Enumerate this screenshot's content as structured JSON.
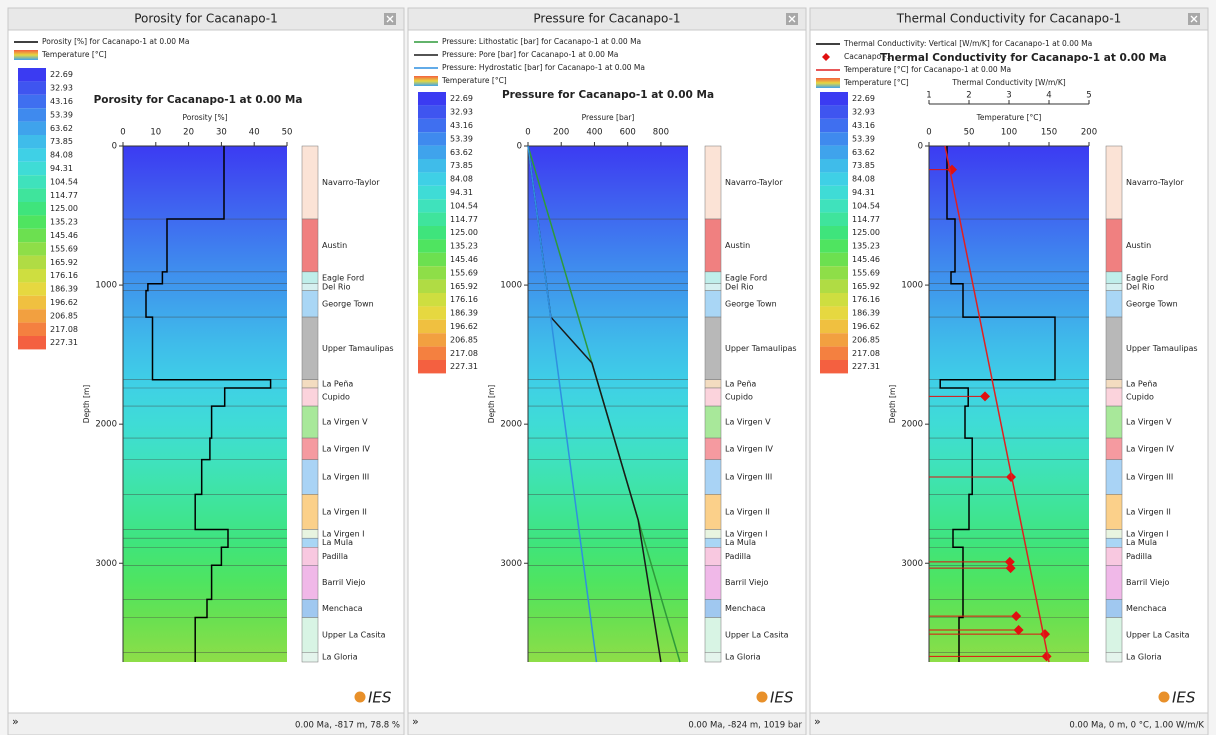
{
  "formations": [
    {
      "name": "Navarro-Taylor",
      "top": 0,
      "color": "#fbe3d6"
    },
    {
      "name": "Austin",
      "top": 525,
      "color": "#f08080"
    },
    {
      "name": "Eagle Ford",
      "top": 905,
      "color": "#bfeeea"
    },
    {
      "name": "Del Rio",
      "top": 990,
      "color": "#d6f0f0"
    },
    {
      "name": "George Town",
      "top": 1040,
      "color": "#a9d6f5"
    },
    {
      "name": "Upper Tamaulipas",
      "top": 1230,
      "color": "#b8b8b8"
    },
    {
      "name": "La Peña",
      "top": 1680,
      "color": "#f3dcc0"
    },
    {
      "name": "Cupido",
      "top": 1740,
      "color": "#fbd3dc"
    },
    {
      "name": "La Virgen V",
      "top": 1870,
      "color": "#a8e89a"
    },
    {
      "name": "La Virgen IV",
      "top": 2100,
      "color": "#f59aa0"
    },
    {
      "name": "La Virgen III",
      "top": 2255,
      "color": "#a9d3f5"
    },
    {
      "name": "La Virgen II",
      "top": 2505,
      "color": "#fbd08a"
    },
    {
      "name": "La Virgen I",
      "top": 2757,
      "color": "#e8f4e0"
    },
    {
      "name": "La Mula",
      "top": 2820,
      "color": "#a9d6f5"
    },
    {
      "name": "Padilla",
      "top": 2885,
      "color": "#f8c8e0"
    },
    {
      "name": "Barril Viejo",
      "top": 3015,
      "color": "#f0b8e8"
    },
    {
      "name": "Menchaca",
      "top": 3260,
      "color": "#a0c8f0"
    },
    {
      "name": "Upper La Casita",
      "top": 3390,
      "color": "#d8f4e4"
    },
    {
      "name": "La Gloria",
      "top": 3640,
      "color": "#e4f4ec"
    }
  ],
  "temperature_scale": {
    "values": [
      22.69,
      32.93,
      43.16,
      53.39,
      63.62,
      73.85,
      84.08,
      94.31,
      104.54,
      114.77,
      {
        "value": 125,
        "label": "125.00"
      },
      135.23,
      145.46,
      155.69,
      165.92,
      176.16,
      186.39,
      196.62,
      206.85,
      217.08,
      227.31
    ],
    "colors": [
      "#3b3bf2",
      "#3f55f0",
      "#3f6ff0",
      "#3f8aee",
      "#3fa3ec",
      "#3fbcea",
      "#3fd0e6",
      "#3fdcd6",
      "#3fe2bc",
      "#3fe49c",
      "#3fe47c",
      "#4fe460",
      "#6ce050",
      "#8ede48",
      "#b0dc44",
      "#cede40",
      "#e6d840",
      "#f0c040",
      "#f2a040",
      "#f48040",
      "#f46040"
    ]
  },
  "panels": [
    {
      "title": "Porosity for Cacanapo-1",
      "temperature_label": "Temperature [°C]",
      "status": "0.00 Ma, -817 m, 78.8 %",
      "expander": "»",
      "logo": "IES",
      "chart": {
        "type": "line",
        "title": "Porosity for Cacanapo-1 at 0.00 Ma",
        "xlabel": "Porosity [%]",
        "ylabel": "Depth [m]",
        "xlim": [
          0,
          50
        ],
        "xticks": [
          0,
          10,
          20,
          30,
          40,
          50
        ],
        "ylim": [
          0,
          3710
        ],
        "yticks": [
          0,
          1000,
          2000,
          3000
        ],
        "series": [
          {
            "name": "Porosity [%] for Cacanapo-1 at 0.00 Ma",
            "color": "#000000",
            "depth": [
              0,
              525,
              525,
              905,
              905,
              990,
              990,
              1040,
              1040,
              1230,
              1230,
              1680,
              1680,
              1740,
              1740,
              1870,
              1870,
              2100,
              2100,
              2255,
              2255,
              2505,
              2505,
              2757,
              2757,
              2885,
              2885,
              3015,
              3015,
              3260,
              3260,
              3390,
              3390,
              3710
            ],
            "values": [
              30.8,
              30.8,
              13.4,
              13.4,
              12,
              12,
              7.6,
              7.6,
              7,
              7,
              9,
              9,
              45,
              45,
              31,
              31,
              27,
              27,
              26.5,
              26.5,
              24,
              24,
              22,
              22,
              32,
              32,
              30,
              30,
              27,
              27,
              25.6,
              25.6,
              22,
              22
            ]
          }
        ]
      }
    },
    {
      "title": "Pressure for Cacanapo-1",
      "temperature_label": "Temperature [°C]",
      "status": "0.00 Ma, -824 m, 1019 bar",
      "expander": "»",
      "logo": "IES",
      "chart": {
        "type": "line",
        "title": "Pressure for Cacanapo-1 at 0.00 Ma",
        "xlabel": "Pressure [bar]",
        "ylabel": "Depth [m]",
        "xlim": [
          0,
          963
        ],
        "xticks": [
          0,
          200,
          400,
          600,
          800
        ],
        "ylim": [
          0,
          3710
        ],
        "yticks": [
          0,
          1000,
          2000,
          3000
        ],
        "series": [
          {
            "name": "Pressure: Lithostatic [bar] for Cacanapo-1 at 0.00 Ma",
            "color": "#2e9a3a",
            "depth": [
              0,
              3710
            ],
            "values": [
              0,
              915
            ]
          },
          {
            "name": "Pressure: Pore [bar] for Cacanapo-1 at 0.00 Ma",
            "color": "#1a1a1a",
            "depth": [
              0,
              1230,
              1560,
              2690,
              3710
            ],
            "values": [
              0,
              137,
              385,
              663,
              800
            ]
          },
          {
            "name": "Pressure: Hydrostatic [bar] for Cacanapo-1 at 0.00 Ma",
            "color": "#2f8fe0",
            "depth": [
              0,
              3710
            ],
            "values": [
              0,
              412
            ]
          }
        ]
      }
    },
    {
      "title": "Thermal Conductivity for Cacanapo-1",
      "temperature_label": "Temperature [°C]",
      "status": "0.00 Ma, 0 m, 0 °C, 1.00 W/m/K",
      "expander": "»",
      "logo": "IES",
      "chart": {
        "type": "line",
        "title": "Thermal Conductivity for Cacanapo-1 at 0.00 Ma",
        "xlabel": "Temperature [°C]",
        "ylabel": "Depth [m]",
        "xlim": [
          0,
          200
        ],
        "xticks": [
          0,
          50,
          100,
          150,
          200
        ],
        "ylim": [
          0,
          3710
        ],
        "yticks": [
          0,
          1000,
          2000,
          3000
        ],
        "x2label": "Thermal Conductivity [W/m/K]",
        "x2lim": [
          1,
          5
        ],
        "x2ticks": [
          1,
          2,
          3,
          4,
          5
        ],
        "series": [
          {
            "name": "Thermal Conductivity: Vertical [W/m/K] for Cacanapo-1 at 0.00 Ma",
            "color": "#000000",
            "axis": "x2",
            "depth": [
              0,
              525,
              525,
              905,
              905,
              990,
              990,
              1040,
              1040,
              1230,
              1230,
              1680,
              1680,
              1740,
              1740,
              1870,
              1870,
              2100,
              2100,
              2505,
              2505,
              2757,
              2757,
              2885,
              2885,
              3390,
              3390,
              3710
            ],
            "values": [
              1.45,
              1.45,
              1.65,
              1.65,
              1.55,
              1.55,
              1.85,
              1.85,
              1.85,
              1.85,
              4.15,
              4.15,
              1.28,
              1.28,
              1.98,
              1.98,
              1.9,
              1.9,
              2.08,
              2.08,
              2.0,
              2.0,
              1.6,
              1.6,
              1.85,
              1.85,
              1.75,
              1.75
            ]
          },
          {
            "name": "Cacanapo -1",
            "type": "scatter",
            "color": "#e01010",
            "depth": [
              170,
              1800,
              2380,
              2990,
              3035,
              3380,
              3480,
              3510,
              3670
            ],
            "values": [
              28.75,
              70,
              102.5,
              101,
              102,
              109,
              112,
              145,
              147
            ]
          },
          {
            "name": "Temperature [°C] for Cacanapo-1 at 0.00 Ma",
            "color": "#e02020",
            "depth": [
              0,
              3710
            ],
            "values": [
              20,
              150
            ]
          }
        ]
      }
    }
  ]
}
